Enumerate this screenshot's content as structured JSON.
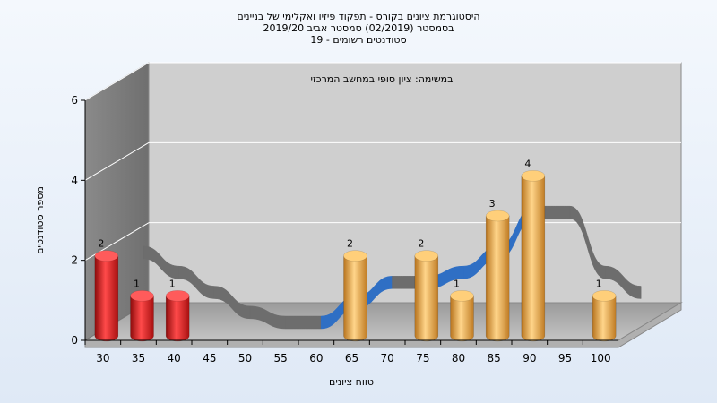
{
  "chart_data": {
    "type": "bar",
    "title_lines": [
      "היסטוגרמת ציונים בקורס - תפקוד פיזיו ואקלימי של בניינים",
      "בסמסטר  (02/2019)  סמסטר אביב 2019/20",
      "סטודנטים רשומים - 19"
    ],
    "subtitle": "במשימה: ציון סופי במחשב המרכזי",
    "xlabel": "טווח ציונים",
    "ylabel": "מספר סטודנטים",
    "categories": [
      "30",
      "35",
      "40",
      "45",
      "50",
      "55",
      "60",
      "65",
      "70",
      "75",
      "80",
      "85",
      "90",
      "95",
      "100"
    ],
    "values": [
      2,
      1,
      1,
      0,
      0,
      0,
      0,
      2,
      0,
      2,
      1,
      3,
      4,
      0,
      1
    ],
    "bar_colors": [
      "red",
      "red",
      "red",
      null,
      null,
      null,
      null,
      "orange",
      null,
      "orange",
      "orange",
      "orange",
      "orange",
      null,
      "orange"
    ],
    "ylim": [
      0,
      6
    ],
    "yticks": [
      0,
      2,
      4,
      6
    ],
    "grid": true,
    "colors": {
      "red": "#e02020",
      "orange": "#eaa84a",
      "ribbon_blue": "#2f6fc4",
      "ribbon_gray": "#6d6d6d"
    }
  }
}
